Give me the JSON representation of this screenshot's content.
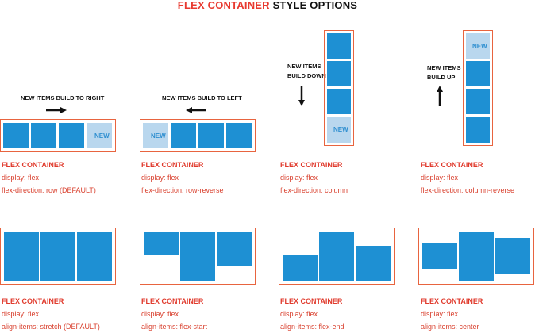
{
  "title": {
    "accent": "FLEX CONTAINER",
    "rest": "STYLE OPTIONS"
  },
  "new_label": "NEW",
  "notes": {
    "row": "NEW ITEMS BUILD TO RIGHT",
    "row_reverse": "NEW ITEMS BUILD TO LEFT",
    "column_1": "NEW ITEMS",
    "column_2": "BUILD DOWN",
    "column_reverse_1": "NEW ITEMS",
    "column_reverse_2": "BUILD UP"
  },
  "captions": [
    {
      "head": "FLEX CONTAINER",
      "line1": "display: flex",
      "line2": "flex-direction: row (DEFAULT)"
    },
    {
      "head": "FLEX CONTAINER",
      "line1": "display: flex",
      "line2": "flex-direction: row-reverse"
    },
    {
      "head": "FLEX CONTAINER",
      "line1": "display: flex",
      "line2": "flex-direction: column"
    },
    {
      "head": "FLEX CONTAINER",
      "line1": "display: flex",
      "line2": "flex-direction: column-reverse"
    },
    {
      "head": "FLEX CONTAINER",
      "line1": "display: flex",
      "line2": "align-items: stretch (DEFAULT)"
    },
    {
      "head": "FLEX CONTAINER",
      "line1": "display: flex",
      "line2": "align-items: flex-start"
    },
    {
      "head": "FLEX CONTAINER",
      "line1": "display: flex",
      "line2": "align-items: flex-end"
    },
    {
      "head": "FLEX CONTAINER",
      "line1": "display: flex",
      "line2": "align-items: center"
    }
  ],
  "colors": {
    "accent": "#e8392f",
    "frame": "#e8643f",
    "item": "#1e90d3",
    "new_item": "#b9d7ee"
  }
}
